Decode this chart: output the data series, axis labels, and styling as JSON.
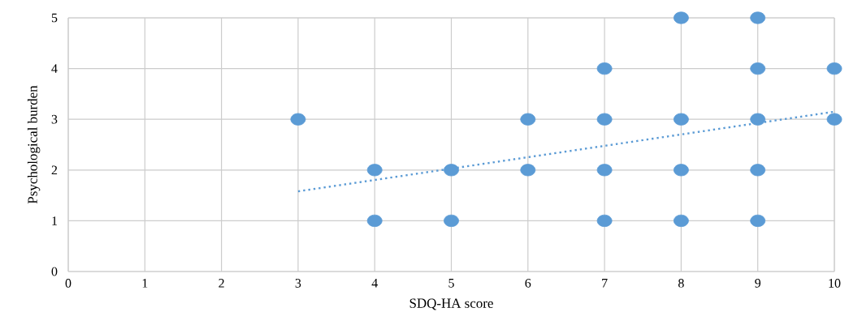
{
  "chart_data": {
    "type": "scatter",
    "xlabel": "SDQ-HA score",
    "ylabel": "Psychological burden",
    "xlim": [
      0,
      10
    ],
    "ylim": [
      0,
      5
    ],
    "xticks": [
      0,
      1,
      2,
      3,
      4,
      5,
      6,
      7,
      8,
      9,
      10
    ],
    "yticks": [
      0,
      1,
      2,
      3,
      4,
      5
    ],
    "grid": true,
    "series": [
      {
        "color": "#5b9bd5",
        "marker": "circle",
        "x": [
          3,
          4,
          4,
          5,
          5,
          6,
          6,
          7,
          7,
          7,
          7,
          8,
          8,
          8,
          8,
          9,
          9,
          9,
          9,
          9,
          10,
          10
        ],
        "values": [
          3,
          2,
          1,
          2,
          1,
          3,
          2,
          4,
          3,
          2,
          1,
          5,
          3,
          2,
          1,
          5,
          4,
          3,
          2,
          1,
          4,
          3
        ]
      },
      {
        "type": "line",
        "color": "#5b9bd5",
        "marker": "none",
        "line_style": "dotted",
        "x": [
          3,
          10
        ],
        "values": [
          1.58,
          3.15
        ]
      }
    ]
  }
}
